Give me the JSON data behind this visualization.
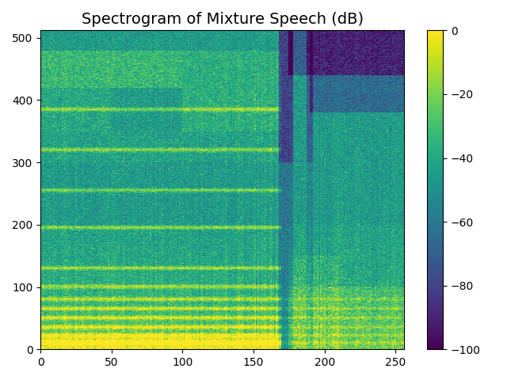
{
  "title": "Spectrogram of Mixture Speech (dB)",
  "xlabel": "",
  "ylabel": "",
  "vmin": -100,
  "vmax": 0,
  "colormap": "viridis",
  "figsize": [
    6.4,
    4.8
  ],
  "dpi": 100,
  "x_ticks": [
    0,
    50,
    100,
    150,
    200,
    250
  ],
  "y_ticks": [
    0,
    100,
    200,
    300,
    400,
    500
  ],
  "colorbar_ticks": [
    0,
    -20,
    -40,
    -60,
    -80,
    -100
  ],
  "seed": 42,
  "n_time": 257,
  "n_freq": 513
}
